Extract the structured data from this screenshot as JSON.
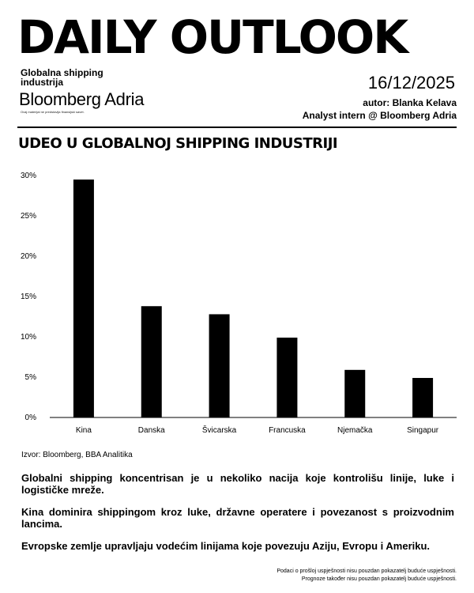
{
  "header": {
    "title": "DAILY OUTLOOK",
    "subtitle_small": "Globalna shipping industrija",
    "brand": "Bloomberg Adria",
    "disclaimer_small": "Ovaj materijal ne predstavlja finansijski savet.",
    "date": "16/12/2025",
    "author_line1": "autor: Blanka Kelava",
    "author_line2": "Analyst intern @ Bloomberg Adria"
  },
  "chart_data": {
    "type": "bar",
    "title": "UDEO U GLOBALNOJ SHIPPING INDUSTRIJI",
    "categories": [
      "Kina",
      "Danska",
      "Švicarska",
      "Francuska",
      "Njemačka",
      "Singapur"
    ],
    "values": [
      29.5,
      13.8,
      12.8,
      9.9,
      5.9,
      4.9
    ],
    "unit": "%",
    "ylim": [
      0,
      30
    ],
    "yticks": [
      "0%",
      "5%",
      "10%",
      "15%",
      "20%",
      "25%",
      "30%"
    ],
    "xlabel": "",
    "ylabel": "",
    "grid": false,
    "bar_color": "#000000"
  },
  "source": "Izvor: Bloomberg, BBA Analitika",
  "notes": [
    "Globalni shipping koncentrisan je u nekoliko nacija koje kontrolišu linije, luke i logističke mreže.",
    "Kina dominira shippingom kroz luke, državne operatere i povezanost s proizvodnim lancima.",
    "Evropske zemlje upravljaju vodećim linijama koje povezuju Aziju, Evropu i Ameriku."
  ],
  "footer": {
    "line1": "Podaci o prošloj uspješnosti nisu pouzdan pokazatelj buduće uspješnosti.",
    "line2": "Prognoze također nisu pouzdan pokazatelj buduće uspješnosti."
  }
}
